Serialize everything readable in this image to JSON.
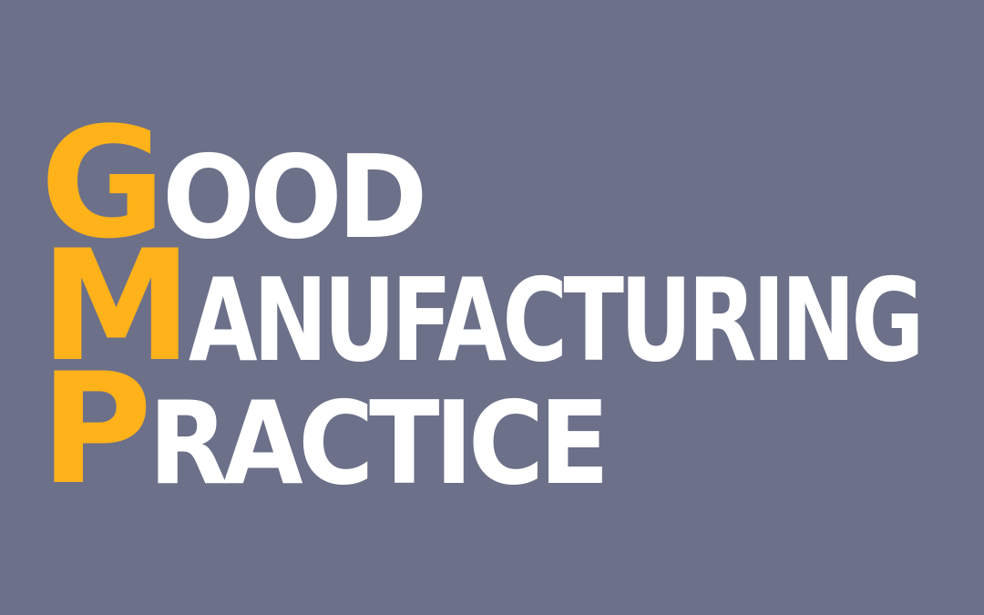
{
  "colors": {
    "background": "#6c7089",
    "accent": "#ffb21a",
    "text": "#ffffff"
  },
  "lines": [
    {
      "initial": "G",
      "rest": "OOD"
    },
    {
      "initial": "M",
      "rest": "ANUFACTURING"
    },
    {
      "initial": "P",
      "rest": "RACTICE"
    }
  ]
}
